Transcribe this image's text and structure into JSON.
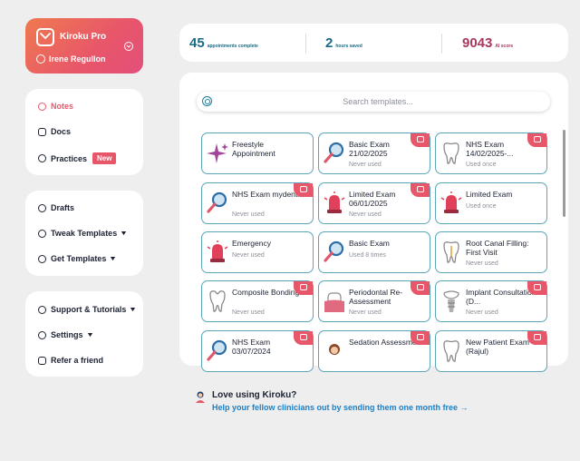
{
  "profile": {
    "brand": "Kiroku Pro",
    "user": "Irene Regullon"
  },
  "nav": {
    "primary": [
      {
        "label": "Notes",
        "icon": "user-circle-icon",
        "active": true
      },
      {
        "label": "Docs",
        "icon": "doc-icon"
      },
      {
        "label": "Practices",
        "icon": "plus-circle-icon",
        "badge": "New"
      }
    ],
    "tools": [
      {
        "label": "Drafts",
        "icon": "draft-icon"
      },
      {
        "label": "Tweak Templates",
        "icon": "edit-circle-icon",
        "chevron": true
      },
      {
        "label": "Get Templates",
        "icon": "download-icon",
        "chevron": true
      }
    ],
    "support": [
      {
        "label": "Support & Tutorials",
        "icon": "help-icon",
        "chevron": true
      },
      {
        "label": "Settings",
        "icon": "gear-icon",
        "chevron": true
      },
      {
        "label": "Refer a friend",
        "icon": "chat-icon"
      }
    ]
  },
  "stats": [
    {
      "value": "45",
      "label": "appointments complete",
      "color": "#1a6c86"
    },
    {
      "value": "2",
      "label": "hours saved",
      "color": "#1a6c86"
    },
    {
      "value": "9043",
      "label": "AI score",
      "color": "#a8395e"
    }
  ],
  "search": {
    "placeholder": "Search templates..."
  },
  "templates": [
    {
      "title": "Freestyle Appointment",
      "sub": "",
      "icon": "sparkle-icon",
      "flag": false
    },
    {
      "title": "Basic Exam 21/02/2025",
      "sub": "Never used",
      "icon": "magnifier-icon",
      "flag": true
    },
    {
      "title": "NHS Exam 14/02/2025-...",
      "sub": "Used once",
      "icon": "tooth-icon",
      "flag": true
    },
    {
      "title": "NHS Exam mydentist",
      "sub": "Never used",
      "icon": "magnifier-icon",
      "flag": true
    },
    {
      "title": "Limited Exam 06/01/2025",
      "sub": "Never used",
      "icon": "siren-icon",
      "flag": true
    },
    {
      "title": "Limited Exam",
      "sub": "Used once",
      "icon": "siren-icon",
      "flag": false
    },
    {
      "title": "Emergency",
      "sub": "Never used",
      "icon": "siren-icon",
      "flag": false
    },
    {
      "title": "Basic Exam",
      "sub": "Used 8 times",
      "icon": "magnifier-icon",
      "flag": false
    },
    {
      "title": "Root Canal Filling: First Visit",
      "sub": "Never used",
      "icon": "root-canal-icon",
      "flag": false
    },
    {
      "title": "Composite Bonding...",
      "sub": "Never used",
      "icon": "tooth-chipped-icon",
      "flag": true
    },
    {
      "title": "Periodontal Re-Assessment",
      "sub": "Never used",
      "icon": "gum-icon",
      "flag": true
    },
    {
      "title": "Implant Consultation (D...",
      "sub": "Never used",
      "icon": "implant-icon",
      "flag": true
    },
    {
      "title": "NHS Exam 03/07/2024",
      "sub": "",
      "icon": "magnifier-icon",
      "flag": true
    },
    {
      "title": "Sedation Assessment",
      "sub": "",
      "icon": "person-icon",
      "flag": true
    },
    {
      "title": "New Patient Exam (Rajul)",
      "sub": "",
      "icon": "tooth-icon",
      "flag": true
    }
  ],
  "promo": {
    "title": "Love using Kiroku?",
    "link": "Help your fellow clinicians out by sending them one month free →"
  },
  "colors": {
    "accent": "#e8566a",
    "teal": "#1a6c86",
    "card_border": "#5aa6b8",
    "link": "#1a7fc8"
  }
}
